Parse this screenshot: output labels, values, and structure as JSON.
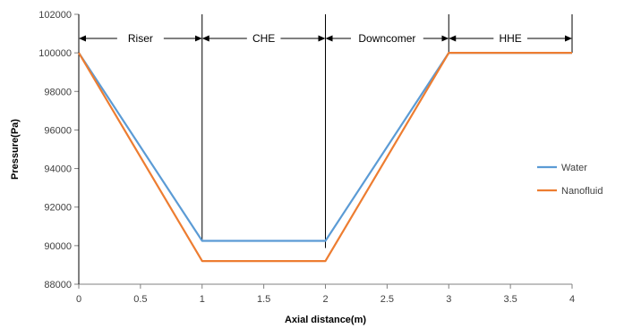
{
  "chart_data": {
    "type": "line",
    "title": "",
    "xlabel": "Axial distance(m)",
    "ylabel": "Pressure(Pa)",
    "xlim": [
      0,
      4
    ],
    "ylim": [
      88000,
      102000
    ],
    "x_ticks": [
      0,
      0.5,
      1,
      1.5,
      2,
      2.5,
      3,
      3.5,
      4
    ],
    "y_ticks": [
      88000,
      90000,
      92000,
      94000,
      96000,
      98000,
      100000,
      102000
    ],
    "x_tick_labels": [
      "0",
      "0.5",
      "1",
      "1.5",
      "2",
      "2.5",
      "3",
      "3.5",
      "4"
    ],
    "y_tick_labels": [
      "88000",
      "90000",
      "92000",
      "94000",
      "96000",
      "98000",
      "100000",
      "102000"
    ],
    "grid": false,
    "legend_position": "right",
    "series": [
      {
        "name": "Water",
        "color": "#5B9BD5",
        "x": [
          0,
          1,
          2,
          3,
          4
        ],
        "y": [
          100000,
          90250,
          90250,
          100000,
          100000
        ]
      },
      {
        "name": "Nanofluid",
        "color": "#ED7D31",
        "x": [
          0,
          1,
          2,
          3,
          4
        ],
        "y": [
          100000,
          89200,
          89200,
          100000,
          100000
        ]
      }
    ],
    "region_boundaries": [
      0,
      1,
      2,
      3,
      4
    ],
    "regions": [
      {
        "label": "Riser",
        "from": 0,
        "to": 1
      },
      {
        "label": "CHE",
        "from": 1,
        "to": 2
      },
      {
        "label": "Downcomer",
        "from": 2,
        "to": 3
      },
      {
        "label": "HHE",
        "from": 3,
        "to": 4
      }
    ]
  }
}
